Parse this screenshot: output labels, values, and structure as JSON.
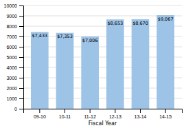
{
  "chart_data": {
    "type": "bar",
    "xlabel": "Fiscal Year",
    "categories": [
      "09-10",
      "10-11",
      "11-12",
      "12-13",
      "13-14",
      "14-15"
    ],
    "values": [
      7433,
      7353,
      7006,
      8653,
      8670,
      9067
    ],
    "value_labels": [
      "$7,433",
      "$7,353",
      "$7,006",
      "$8,653",
      "$8,670",
      "$9,067"
    ],
    "data_labels": true,
    "color": "#9DC3E6",
    "ylim": [
      0,
      10000
    ],
    "yticks": [
      0,
      1000,
      2000,
      3000,
      4000,
      5000,
      6000,
      7000,
      8000,
      9000,
      10000
    ],
    "grid": true
  }
}
